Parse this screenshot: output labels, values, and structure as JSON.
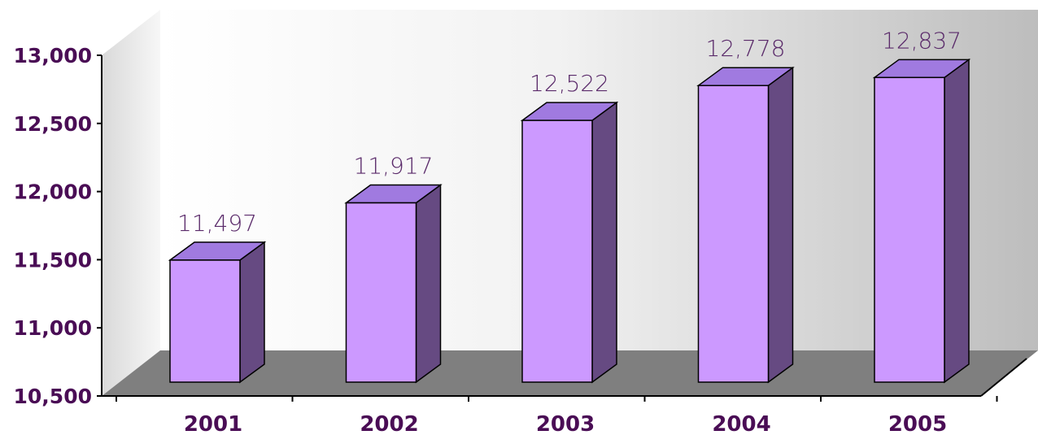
{
  "chart_data": {
    "type": "bar",
    "categories": [
      "2001",
      "2002",
      "2003",
      "2004",
      "2005"
    ],
    "values": [
      11497,
      11917,
      12522,
      12778,
      12837
    ],
    "data_labels": [
      "11,497",
      "11,917",
      "12,522",
      "12,778",
      "12,837"
    ],
    "ylim": [
      10500,
      13000
    ],
    "yticks": [
      10500,
      11000,
      11500,
      12000,
      12500,
      13000
    ],
    "ytick_labels": [
      "10,500",
      "11,000",
      "11,500",
      "12,000",
      "12,500",
      "13,000"
    ],
    "title": "",
    "xlabel": "",
    "ylabel": "",
    "three_d": true,
    "grid": false,
    "legend": "none",
    "colors": {
      "bar_front": "#cc99ff",
      "bar_top": "#a07ae0",
      "bar_side": "#664a82",
      "floor": "#7f7f7f",
      "back_wall_left": "#ffffff",
      "back_wall_right": "#c8c8c8",
      "tick_text": "#4a0d55",
      "data_label_text": "#5a2a6a"
    }
  }
}
